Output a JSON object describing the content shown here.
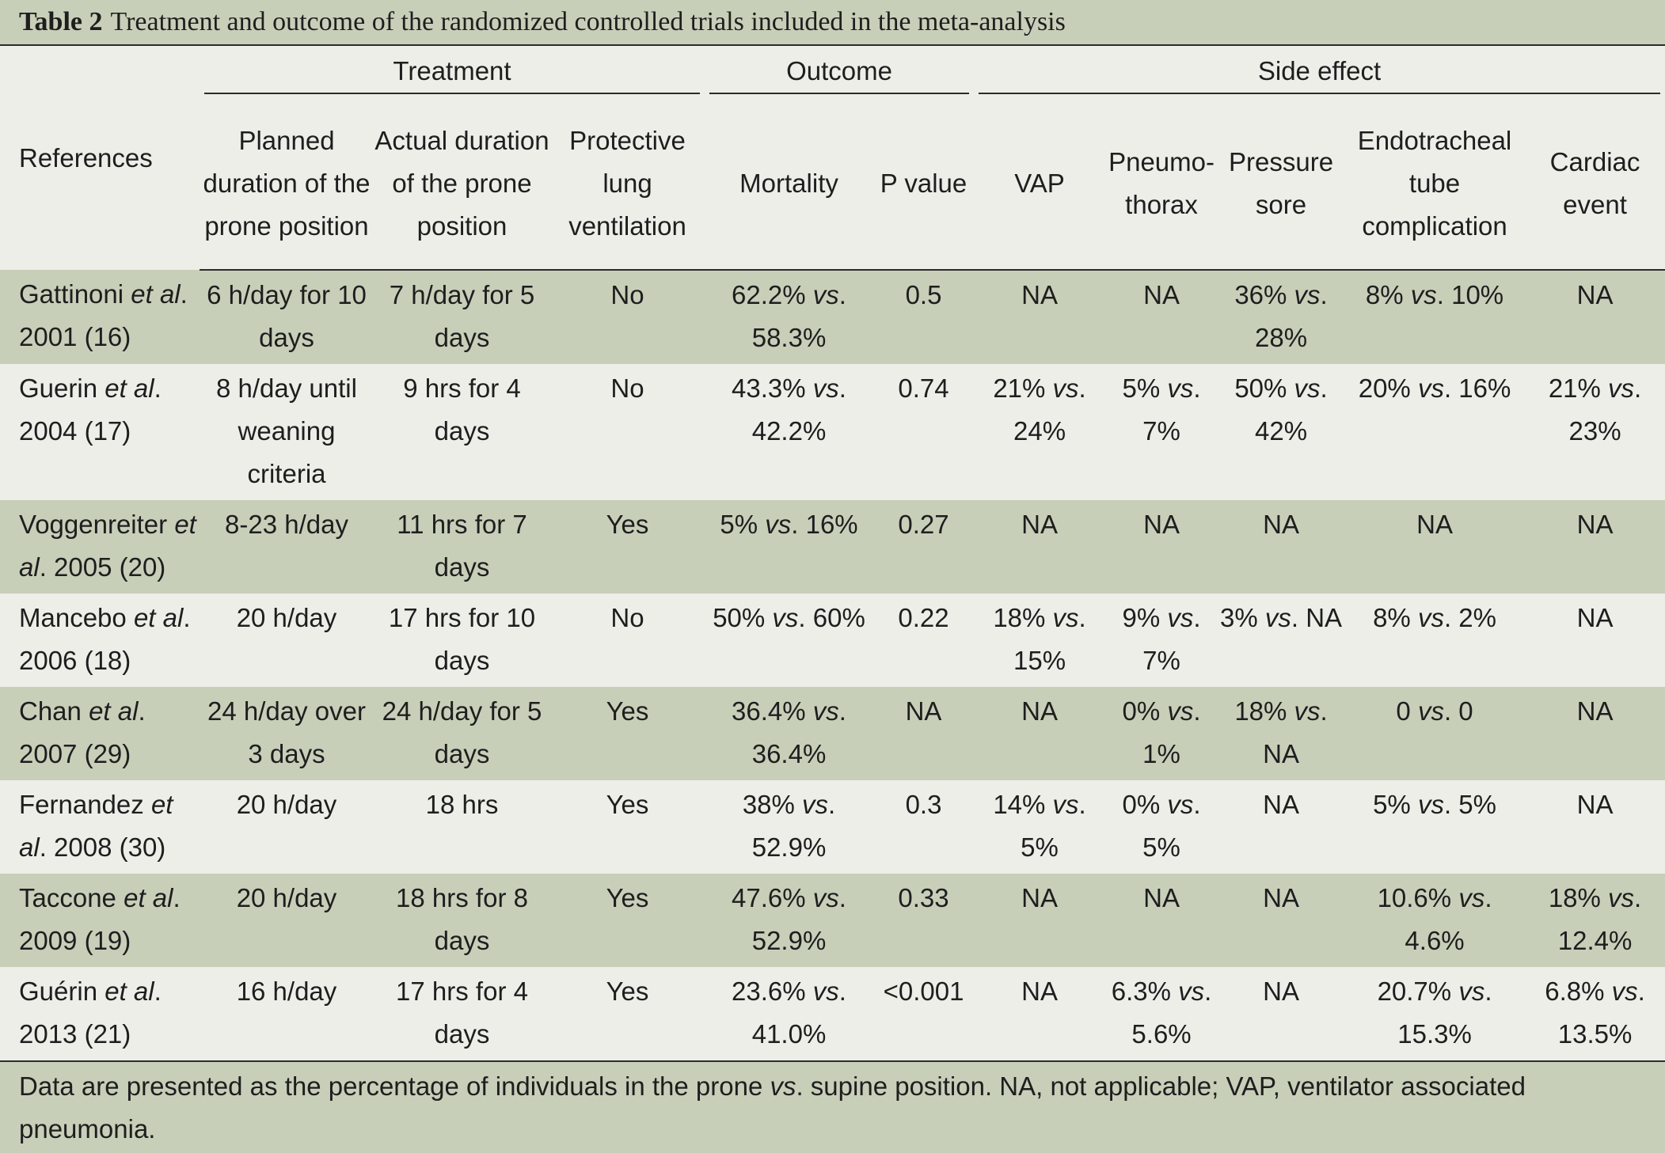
{
  "title": {
    "label": "Table 2",
    "text": "Treatment and outcome of the randomized controlled trials included in the meta-analysis"
  },
  "headers": {
    "references": "References",
    "groups": {
      "treatment": "Treatment",
      "outcome": "Outcome",
      "side_effect": "Side effect"
    },
    "columns": {
      "planned": "Planned duration of the prone position",
      "actual": "Actual duration of the prone position",
      "protective": "Protective lung ventilation",
      "mortality": "Mortality",
      "pvalue": "P value",
      "vap": "VAP",
      "pneumothorax": "Pneumo- thorax",
      "pressure": "Pressure sore",
      "endotracheal": "Endotracheal tube complication",
      "cardiac": "Cardiac event"
    }
  },
  "rows": [
    {
      "author": "Gattinoni",
      "etal": "et al",
      "year": ". 2001 (16)",
      "planned": "6 h/day for 10 days",
      "actual": "7 h/day for 5 days",
      "protective": "No",
      "mortality": [
        "62.2%",
        "58.3%"
      ],
      "pvalue": "0.5",
      "vap": [
        "NA"
      ],
      "pneumothorax": [
        "NA"
      ],
      "pressure": [
        "36%",
        "28%"
      ],
      "endotracheal": [
        "8%",
        "10%"
      ],
      "cardiac": [
        "NA"
      ]
    },
    {
      "author": "Guerin",
      "etal": "et al",
      "year": ". 2004 (17)",
      "planned": "8 h/day until weaning criteria",
      "actual": "9 hrs for 4 days",
      "protective": "No",
      "mortality": [
        "43.3%",
        "42.2%"
      ],
      "pvalue": "0.74",
      "vap": [
        "21%",
        "24%"
      ],
      "pneumothorax": [
        "5%",
        "7%"
      ],
      "pressure": [
        "50%",
        "42%"
      ],
      "endotracheal": [
        "20%",
        "16%"
      ],
      "cardiac": [
        "21%",
        "23%"
      ]
    },
    {
      "author": "Voggenreiter",
      "etal": "et al",
      "year": ". 2005 (20)",
      "planned": "8-23 h/day",
      "actual": "11 hrs for 7 days",
      "protective": "Yes",
      "mortality": [
        "5%",
        "16%"
      ],
      "pvalue": "0.27",
      "vap": [
        "NA"
      ],
      "pneumothorax": [
        "NA"
      ],
      "pressure": [
        "NA"
      ],
      "endotracheal": [
        "NA"
      ],
      "cardiac": [
        "NA"
      ]
    },
    {
      "author": "Mancebo",
      "etal": "et al",
      "year": ". 2006 (18)",
      "planned": "20 h/day",
      "actual": "17 hrs for 10 days",
      "protective": "No",
      "mortality": [
        "50%",
        "60%"
      ],
      "pvalue": "0.22",
      "vap": [
        "18%",
        "15%"
      ],
      "pneumothorax": [
        "9%",
        "7%"
      ],
      "pressure": [
        "3%",
        "NA"
      ],
      "endotracheal": [
        "8%",
        "2%"
      ],
      "cardiac": [
        "NA"
      ]
    },
    {
      "author": "Chan",
      "etal": "et al",
      "year": ". 2007 (29)",
      "planned": "24 h/day over 3 days",
      "actual": "24 h/day for 5 days",
      "protective": "Yes",
      "mortality": [
        "36.4%",
        "36.4%"
      ],
      "pvalue": "NA",
      "vap": [
        "NA"
      ],
      "pneumothorax": [
        "0%",
        "1%"
      ],
      "pressure": [
        "18%",
        "NA"
      ],
      "endotracheal": [
        "0",
        "0"
      ],
      "cardiac": [
        "NA"
      ]
    },
    {
      "author": "Fernandez",
      "etal": "et al",
      "year": ". 2008 (30)",
      "planned": "20 h/day",
      "actual": "18 hrs",
      "protective": "Yes",
      "mortality": [
        "38%",
        "52.9%"
      ],
      "pvalue": "0.3",
      "vap": [
        "14%",
        "5%"
      ],
      "pneumothorax": [
        "0%",
        "5%"
      ],
      "pressure": [
        "NA"
      ],
      "endotracheal": [
        "5%",
        "5%"
      ],
      "cardiac": [
        "NA"
      ]
    },
    {
      "author": "Taccone",
      "etal": "et al",
      "year": ". 2009 (19)",
      "planned": "20 h/day",
      "actual": "18 hrs for 8 days",
      "protective": "Yes",
      "mortality": [
        "47.6%",
        "52.9%"
      ],
      "pvalue": "0.33",
      "vap": [
        "NA"
      ],
      "pneumothorax": [
        "NA"
      ],
      "pressure": [
        "NA"
      ],
      "endotracheal": [
        "10.6%",
        "4.6%"
      ],
      "cardiac": [
        "18%",
        "12.4%"
      ]
    },
    {
      "author": "Guérin",
      "etal": "et al",
      "year": ". 2013 (21)",
      "planned": "16 h/day",
      "actual": "17 hrs for 4 days",
      "protective": "Yes",
      "mortality": [
        "23.6%",
        "41.0%"
      ],
      "pvalue": "<0.001",
      "vap": [
        "NA"
      ],
      "pneumothorax": [
        "6.3%",
        "5.6%"
      ],
      "pressure": [
        "NA"
      ],
      "endotracheal": [
        "20.7%",
        "15.3%"
      ],
      "cardiac": [
        "6.8%",
        "13.5%"
      ]
    }
  ],
  "vs_label": "vs",
  "footnote": {
    "before": "Data are presented as the percentage of individuals in the prone ",
    "vs": "vs",
    "after": ". supine position. NA, not applicable; VAP, ventilator associated pneumonia."
  },
  "colors": {
    "shade": "#c7cfb9",
    "light": "#edeee8"
  }
}
